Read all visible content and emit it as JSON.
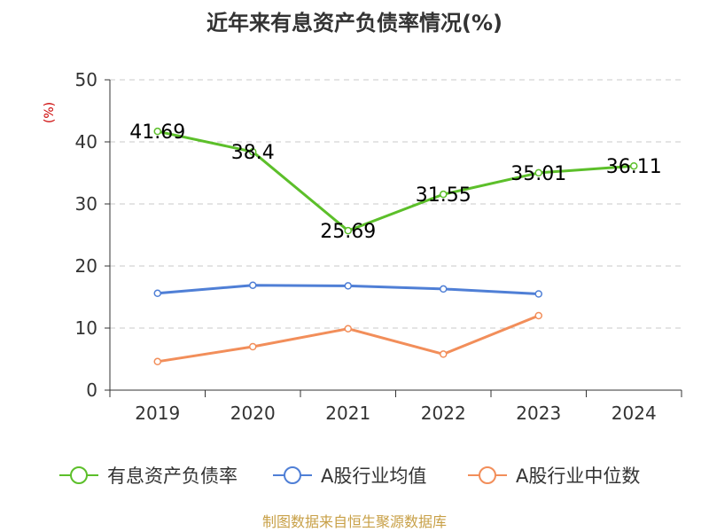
{
  "title": "近年来有息资产负债率情况(%)",
  "chart_data": {
    "type": "line",
    "title": "近年来有息资产负债率情况(%)",
    "ylabel": "(%)",
    "ylim": [
      0,
      50
    ],
    "yticks": [
      0,
      10,
      20,
      30,
      40,
      50
    ],
    "categories": [
      "2019",
      "2020",
      "2021",
      "2022",
      "2023",
      "2024"
    ],
    "grid": true,
    "legend": "bottom",
    "series": [
      {
        "name": "有息资产负债率",
        "color": "#5cbf2a",
        "values": [
          41.69,
          38.4,
          25.69,
          31.55,
          35.01,
          36.11
        ],
        "labels": [
          "41.69",
          "38.4",
          "25.69",
          "31.55",
          "35.01",
          "36.11"
        ]
      },
      {
        "name": "A股行业均值",
        "color": "#4f7fd6",
        "values": [
          15.6,
          16.9,
          16.8,
          16.3,
          15.5,
          null
        ]
      },
      {
        "name": "A股行业中位数",
        "color": "#f28e5a",
        "values": [
          4.6,
          7.0,
          9.9,
          5.8,
          12.0,
          null
        ]
      }
    ]
  },
  "source": "制图数据来自恒生聚源数据库"
}
